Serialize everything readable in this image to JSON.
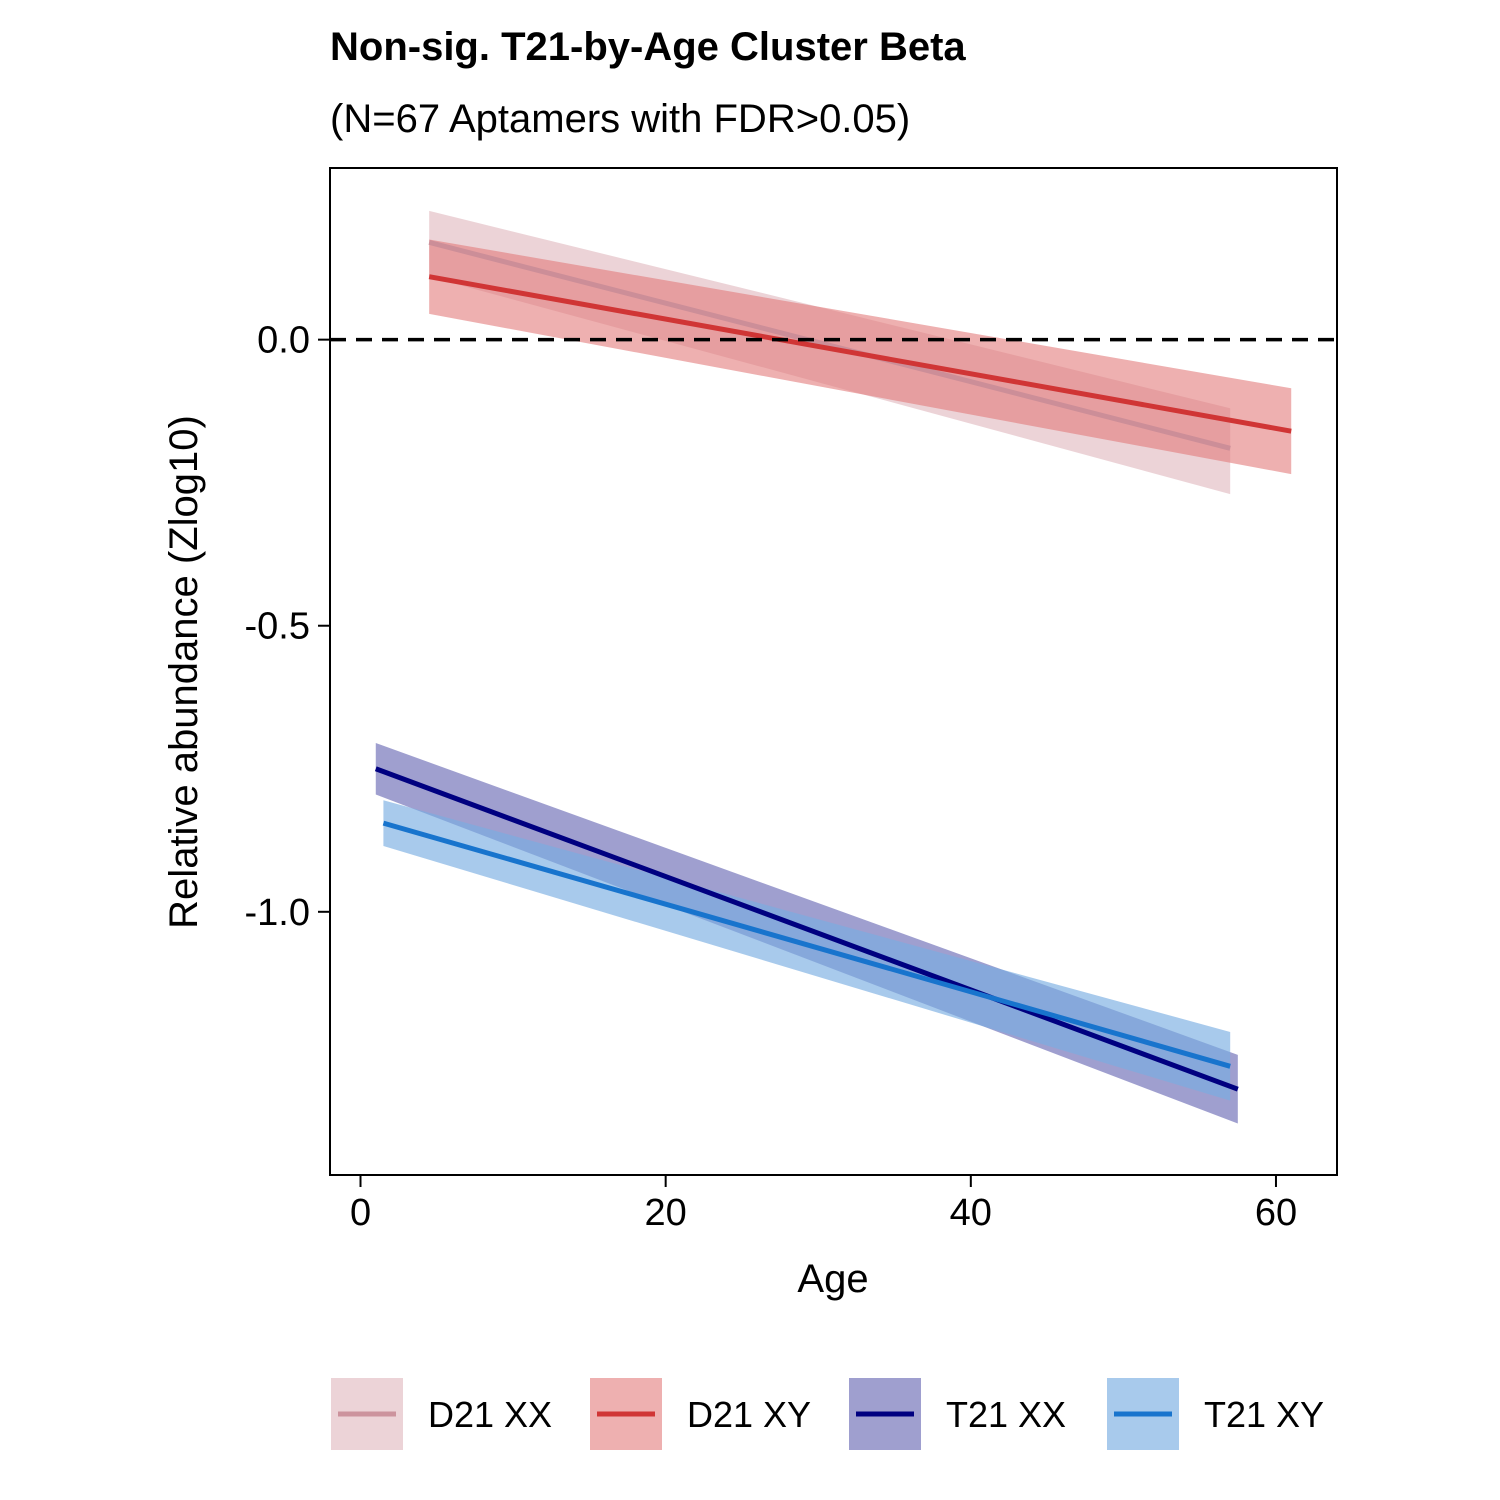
{
  "chart_data": {
    "type": "line",
    "title": "Non-sig. T21-by-Age Cluster Beta",
    "subtitle": "(N=67 Aptamers with FDR>0.05)",
    "xlabel": "Age",
    "ylabel": "Relative abundance (Zlog10)",
    "xlim": [
      -2,
      64
    ],
    "ylim": [
      -1.46,
      0.3
    ],
    "x_ticks": [
      0,
      20,
      40,
      60
    ],
    "x_tick_labels": [
      "0",
      "20",
      "40",
      "60"
    ],
    "y_ticks": [
      0.0,
      -0.5,
      -1.0
    ],
    "y_tick_labels": [
      "0.0",
      "-0.5",
      "-1.0"
    ],
    "reference_line": {
      "y": 0.0,
      "style": "dashed",
      "color": "#000000"
    },
    "grid": false,
    "legend_position": "bottom",
    "series": [
      {
        "name": "D21 XX",
        "color": "#c98c97",
        "band_color": "#e6c4ca",
        "band_opacity": 0.75,
        "line_opacity": 0.9,
        "x": [
          4.5,
          57
        ],
        "y": [
          0.17,
          -0.19
        ],
        "lower": [
          0.11,
          -0.27
        ],
        "upper": [
          0.225,
          -0.12
        ]
      },
      {
        "name": "D21 XY",
        "color": "#d03535",
        "band_color": "#e27b7b",
        "band_opacity": 0.6,
        "line_opacity": 1,
        "x": [
          4.5,
          61
        ],
        "y": [
          0.11,
          -0.16
        ],
        "lower": [
          0.045,
          -0.235
        ],
        "upper": [
          0.175,
          -0.085
        ]
      },
      {
        "name": "T21 XX",
        "color": "#000080",
        "band_color": "#6b6bb5",
        "band_opacity": 0.65,
        "line_opacity": 1,
        "x": [
          1,
          57.5
        ],
        "y": [
          -0.75,
          -1.31
        ],
        "lower": [
          -0.795,
          -1.37
        ],
        "upper": [
          -0.705,
          -1.25
        ]
      },
      {
        "name": "T21 XY",
        "color": "#1874cd",
        "band_color": "#7aaee2",
        "band_opacity": 0.65,
        "line_opacity": 1,
        "x": [
          1.5,
          57
        ],
        "y": [
          -0.845,
          -1.27
        ],
        "lower": [
          -0.885,
          -1.33
        ],
        "upper": [
          -0.805,
          -1.21
        ]
      }
    ]
  }
}
